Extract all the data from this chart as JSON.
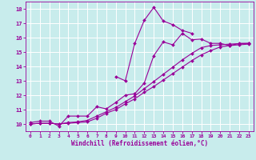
{
  "xlabel": "Windchill (Refroidissement éolien,°C)",
  "bg_color": "#c8ecec",
  "grid_color": "#ffffff",
  "line_color": "#990099",
  "xlim": [
    -0.5,
    23.5
  ],
  "ylim": [
    9.5,
    18.5
  ],
  "xticks": [
    0,
    1,
    2,
    3,
    4,
    5,
    6,
    7,
    8,
    9,
    10,
    11,
    12,
    13,
    14,
    15,
    16,
    17,
    18,
    19,
    20,
    21,
    22,
    23
  ],
  "yticks": [
    10,
    11,
    12,
    13,
    14,
    15,
    16,
    17,
    18
  ],
  "series1_x": [
    0,
    1,
    2,
    3,
    4,
    5,
    6,
    7,
    8,
    9,
    10,
    11,
    12,
    13,
    14,
    15,
    16,
    17,
    18,
    19,
    20,
    21,
    22,
    23
  ],
  "series1_y": [
    10.1,
    10.2,
    10.2,
    9.85,
    10.55,
    10.55,
    10.55,
    11.2,
    11.05,
    11.5,
    12.0,
    12.1,
    12.85,
    14.75,
    15.7,
    15.5,
    16.3,
    15.85,
    15.9,
    15.6,
    15.6,
    15.45,
    15.6,
    15.6
  ],
  "series2_x": [
    0,
    1,
    2,
    3,
    4,
    5,
    6,
    7,
    8,
    9,
    10,
    11,
    12,
    13,
    14,
    15,
    16,
    17,
    18,
    19,
    20,
    21,
    22,
    23
  ],
  "series2_y": [
    10.0,
    10.05,
    10.05,
    10.0,
    10.05,
    10.1,
    10.15,
    10.4,
    10.75,
    11.0,
    11.4,
    11.75,
    12.2,
    12.6,
    13.05,
    13.5,
    13.95,
    14.4,
    14.8,
    15.1,
    15.35,
    15.45,
    15.5,
    15.55
  ],
  "series3_x": [
    0,
    1,
    2,
    3,
    4,
    5,
    6,
    7,
    8,
    9,
    10,
    11,
    12,
    13,
    14,
    15,
    16,
    17,
    18,
    19,
    20,
    21,
    22,
    23
  ],
  "series3_y": [
    10.0,
    10.05,
    10.05,
    10.0,
    10.1,
    10.15,
    10.25,
    10.55,
    10.85,
    11.15,
    11.55,
    11.95,
    12.45,
    12.95,
    13.45,
    13.95,
    14.45,
    14.9,
    15.3,
    15.45,
    15.5,
    15.55,
    15.58,
    15.6
  ],
  "series4_x": [
    9,
    10,
    11,
    12,
    13,
    14,
    15,
    16,
    17
  ],
  "series4_y": [
    13.3,
    13.0,
    15.6,
    17.2,
    18.1,
    17.15,
    16.9,
    16.5,
    16.3
  ],
  "marker": "D",
  "markersize": 2.0,
  "linewidth": 0.8,
  "xlabel_fontsize": 5.5,
  "tick_fontsize": 5.0
}
